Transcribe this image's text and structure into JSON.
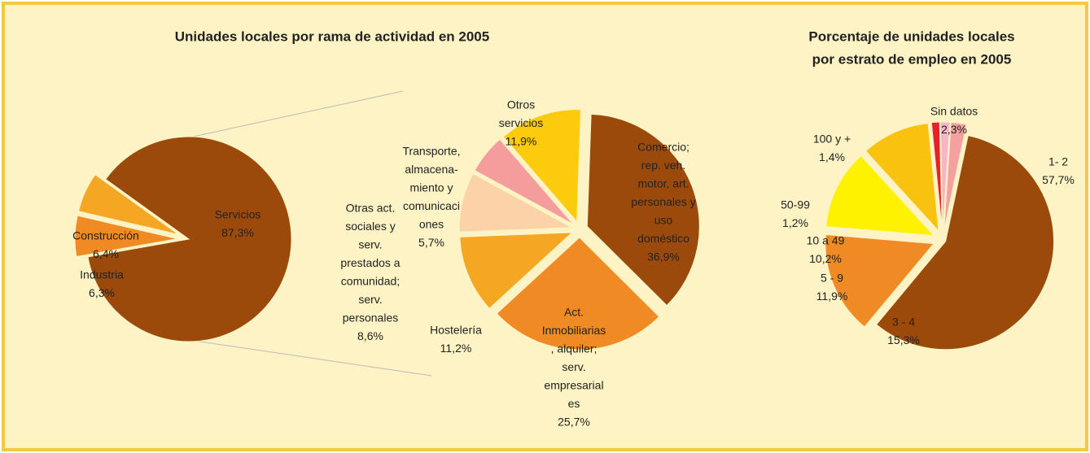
{
  "chart_data": [
    {
      "type": "pie-of-pie",
      "title": "Unidades locales por rama de actividad en 2005",
      "categories": [
        [
          "Servicios"
        ],
        [
          "Construcción"
        ],
        [
          "Industria"
        ]
      ],
      "values": [
        87.3,
        6.4,
        6.3
      ],
      "value_labels": [
        "87,3%",
        "6,4%",
        "6,3%"
      ],
      "colors": [
        "#9c4a0c",
        "#f08a24",
        "#f5a623"
      ],
      "breakdown": {
        "categories": [
          [
            "Comercio;",
            "rep. veh.",
            "motor, art.",
            "personales y",
            "uso",
            "doméstico"
          ],
          [
            "Act.",
            "Inmobiliarias",
            ", alquiler;",
            "serv.",
            "empresarial",
            "es"
          ],
          [
            "Hostelería"
          ],
          [
            "Otras act.",
            "sociales y",
            "serv.",
            "prestados a",
            "comunidad;",
            "serv.",
            "personales"
          ],
          [
            "Transporte,",
            "almacena-",
            "miento y",
            "comunicaci",
            "ones"
          ],
          [
            "Otros",
            "servicios"
          ]
        ],
        "values": [
          36.9,
          25.7,
          11.2,
          8.6,
          5.7,
          11.9
        ],
        "value_labels": [
          "36,9%",
          "25,7%",
          "11,2%",
          "8,6%",
          "5,7%",
          "11,9%"
        ],
        "colors": [
          "#9c4a0c",
          "#f08a24",
          "#f5a623",
          "#fcd3a8",
          "#f59c9c",
          "#fccb0e"
        ]
      }
    },
    {
      "type": "pie",
      "title": [
        "Porcentaje de unidades locales",
        "por estrato de empleo en 2005"
      ],
      "categories": [
        [
          "1- 2"
        ],
        [
          "3 - 4"
        ],
        [
          "5 - 9"
        ],
        [
          "10 a 49"
        ],
        [
          "50-99"
        ],
        [
          "100 y +"
        ],
        [
          "Sin datos"
        ]
      ],
      "values": [
        57.7,
        15.3,
        11.9,
        10.2,
        1.2,
        1.4,
        2.3
      ],
      "value_labels": [
        "57,7%",
        "15,3%",
        "11,9%",
        "10,2%",
        "1,2%",
        "1,4%",
        "2,3%"
      ],
      "colors": [
        "#9c4a0c",
        "#f08a24",
        "#fef200",
        "#f9c20f",
        "#e8202a",
        "#f7b5c8",
        "#f4a0a0"
      ]
    }
  ]
}
